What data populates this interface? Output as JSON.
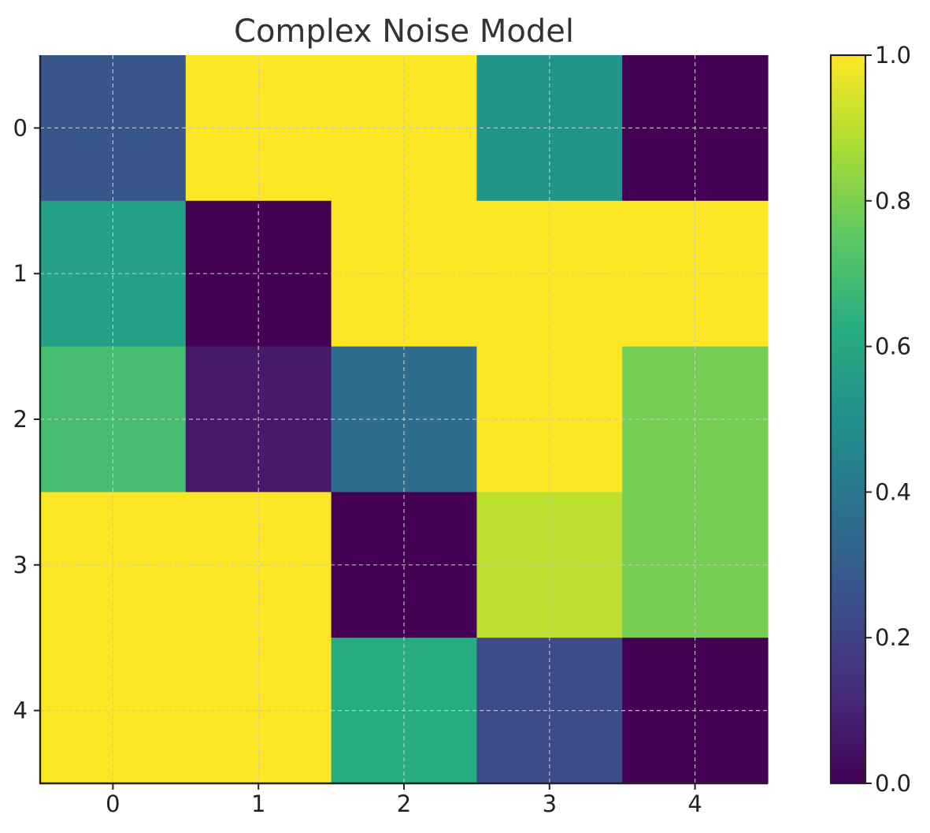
{
  "chart_data": {
    "type": "heatmap",
    "title": "Complex Noise Model",
    "xlabel": "",
    "ylabel": "",
    "x_ticks": [
      "0",
      "1",
      "2",
      "3",
      "4"
    ],
    "y_ticks": [
      "0",
      "1",
      "2",
      "3",
      "4"
    ],
    "values": [
      [
        0.27,
        1.0,
        1.0,
        0.52,
        0.0
      ],
      [
        0.57,
        0.0,
        1.0,
        1.0,
        1.0
      ],
      [
        0.7,
        0.07,
        0.36,
        1.0,
        0.79
      ],
      [
        1.0,
        1.0,
        0.0,
        0.9,
        0.79
      ],
      [
        1.0,
        1.0,
        0.62,
        0.23,
        0.0
      ]
    ],
    "colormap": "viridis",
    "color_range": [
      0.0,
      1.0
    ],
    "colorbar": {
      "ticks": [
        0.0,
        0.2,
        0.4,
        0.6,
        0.8,
        1.0
      ],
      "tick_labels": [
        "0.0",
        "0.2",
        "0.4",
        "0.6",
        "0.8",
        "1.0"
      ],
      "placement": "right"
    },
    "grid": true
  }
}
